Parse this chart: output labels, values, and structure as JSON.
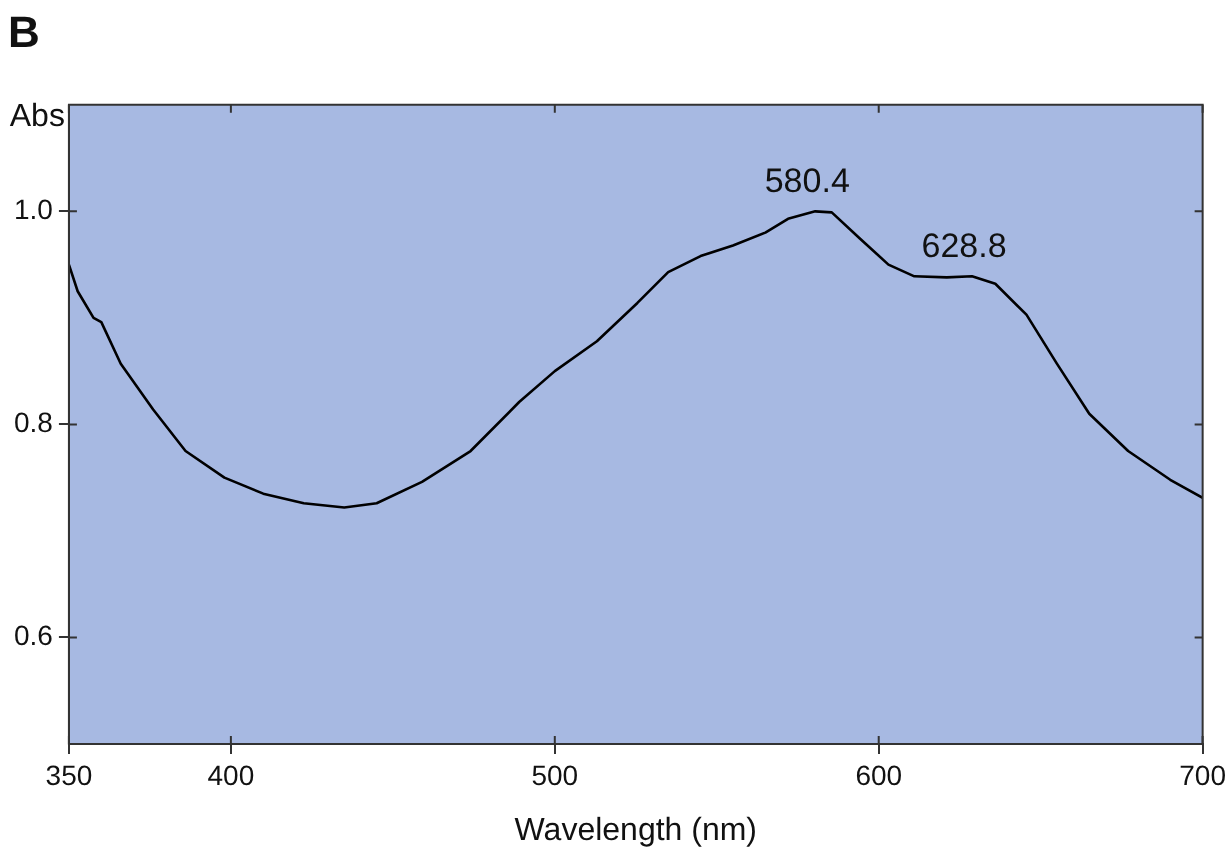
{
  "chart_data": {
    "type": "line",
    "title": "B",
    "xlabel": "Wavelength (nm)",
    "ylabel": "Abs",
    "xlim": [
      350,
      700
    ],
    "xticks": [
      350,
      400,
      500,
      600,
      700
    ],
    "ylim": [
      0.5,
      1.1
    ],
    "yticks": [
      0.6,
      0.8,
      {
        "value": 1,
        "label": "1.0"
      }
    ],
    "grid": false,
    "legend": false,
    "marker": "none",
    "line_style": "solid",
    "annotations": [
      {
        "text": "580.4",
        "x": 580.4,
        "y": 1.0
      },
      {
        "text": "628.8",
        "x": 628.8,
        "y": 0.939
      }
    ],
    "series": [
      {
        "color": "#000000",
        "x": [
          350,
          352.7,
          357.6,
          360,
          366,
          376,
          386,
          398,
          410,
          422.5,
          435,
          445,
          459,
          474,
          489,
          500,
          513,
          525.5,
          535,
          545,
          555,
          565,
          572,
          580.4,
          585.5,
          594,
          603,
          611,
          621,
          628.8,
          636,
          645.6,
          655,
          665,
          677,
          690,
          700
        ],
        "values": [
          0.95,
          0.925,
          0.9,
          0.896,
          0.857,
          0.814,
          0.775,
          0.75,
          0.735,
          0.726,
          0.722,
          0.726,
          0.746,
          0.775,
          0.821,
          0.85,
          0.878,
          0.914,
          0.943,
          0.958,
          0.968,
          0.98,
          0.993,
          1.0,
          0.999,
          0.975,
          0.95,
          0.939,
          0.938,
          0.939,
          0.932,
          0.903,
          0.857,
          0.81,
          0.775,
          0.748,
          0.731
        ]
      }
    ]
  }
}
